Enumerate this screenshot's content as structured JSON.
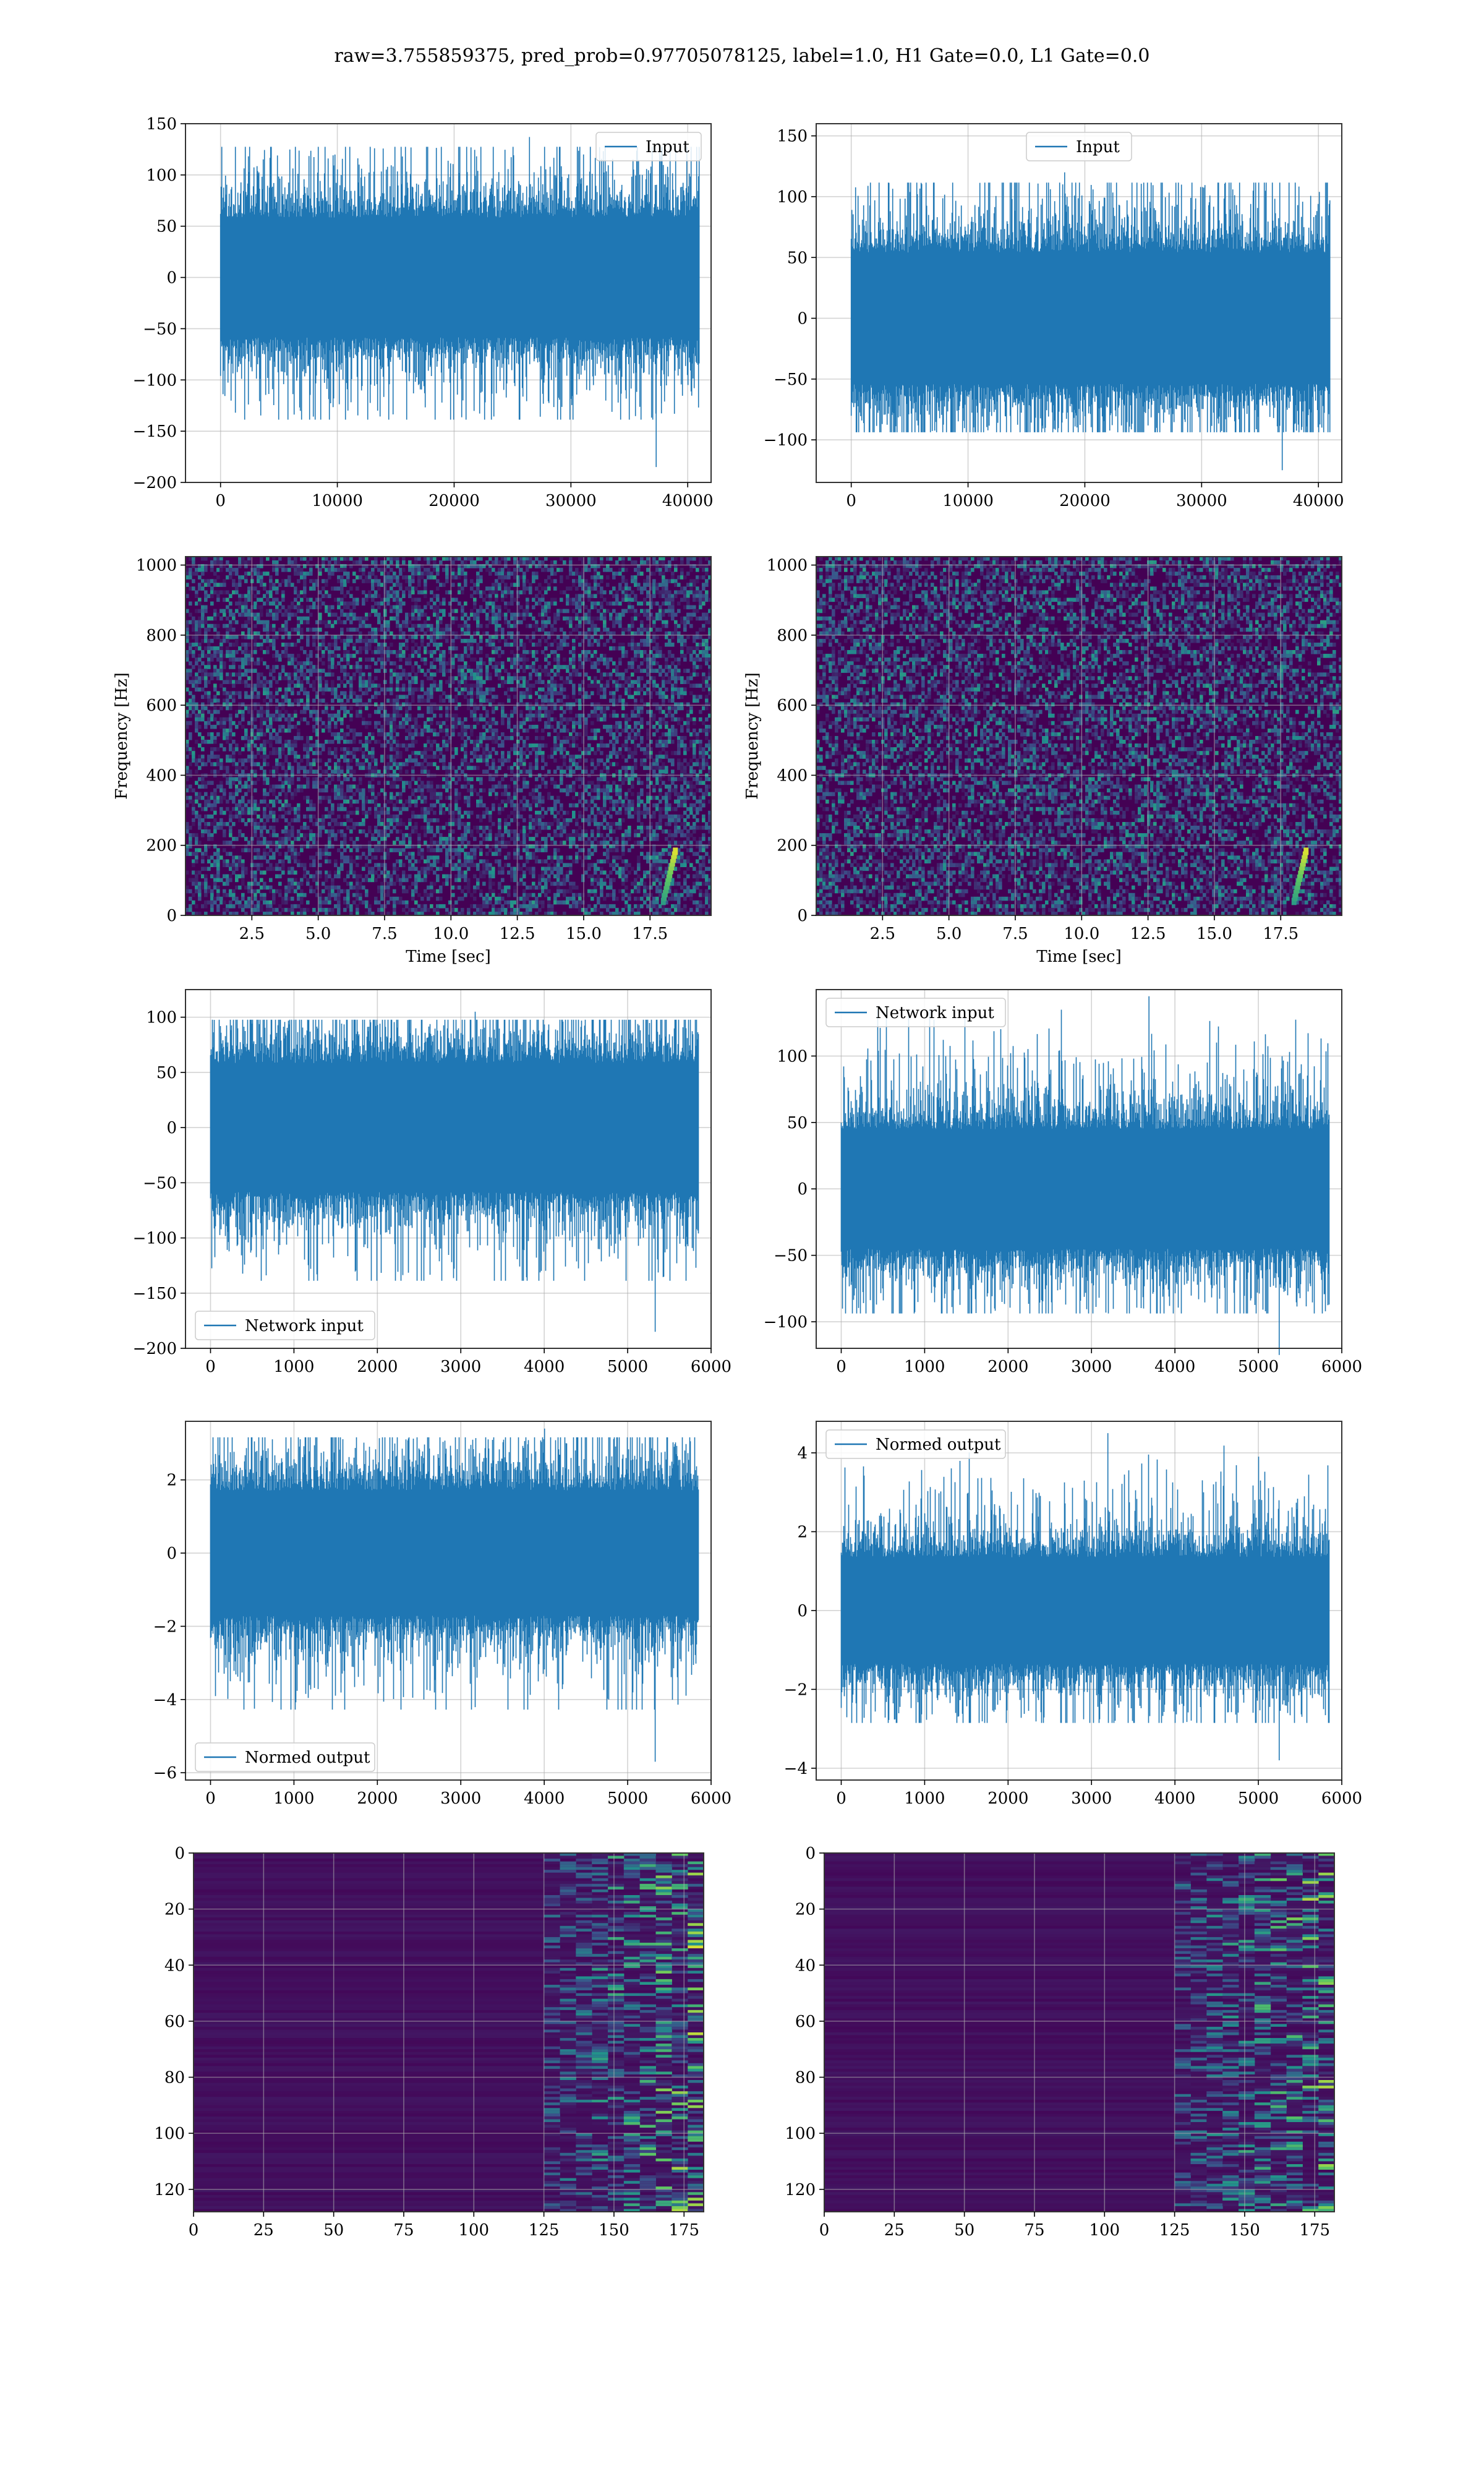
{
  "figure": {
    "suptitle": "raw=3.755859375, pred_prob=0.97705078125, label=1.0, H1 Gate=0.0, L1 Gate=0.0"
  },
  "colors": {
    "line": "#1f77b4",
    "grid": "#b0b0b0",
    "viridis_low": "#440154",
    "viridis_mid": "#21918c",
    "viridis_high": "#fde725"
  },
  "chart_data": [
    {
      "id": "input-h1",
      "type": "line",
      "legend": "Input",
      "legend_loc": "upper right",
      "xlim": [
        -3000,
        42000
      ],
      "ylim": [
        -200,
        150
      ],
      "xticks": [
        0,
        10000,
        20000,
        30000,
        40000
      ],
      "yticks": [
        -200,
        -150,
        -100,
        -50,
        0,
        50,
        100,
        150
      ],
      "n_points": 40960,
      "band": 65,
      "peak_high": 137,
      "peak_low": -185,
      "outlier_x": 37300,
      "xlabel": "",
      "ylabel": "",
      "grid": true
    },
    {
      "id": "input-l1",
      "type": "line",
      "legend": "Input",
      "legend_loc": "upper center",
      "xlim": [
        -3000,
        42000
      ],
      "ylim": [
        -135,
        160
      ],
      "xticks": [
        0,
        10000,
        20000,
        30000,
        40000
      ],
      "yticks": [
        -100,
        -50,
        0,
        50,
        100,
        150
      ],
      "n_points": 40960,
      "band": 60,
      "peak_high": 120,
      "peak_low": -125,
      "outlier_x": 36900,
      "xlabel": "",
      "ylabel": "",
      "grid": true
    },
    {
      "id": "spec-h1",
      "type": "heatmap",
      "xlabel": "Time [sec]",
      "ylabel": "Frequency [Hz]",
      "xlim": [
        0,
        19.8
      ],
      "ylim": [
        0,
        1024
      ],
      "xticks": [
        2.5,
        5.0,
        7.5,
        10.0,
        12.5,
        15.0,
        17.5
      ],
      "yticks": [
        0,
        200,
        400,
        600,
        800,
        1000
      ],
      "grid": true
    },
    {
      "id": "spec-l1",
      "type": "heatmap",
      "xlabel": "Time [sec]",
      "ylabel": "Frequency [Hz]",
      "xlim": [
        0,
        19.8
      ],
      "ylim": [
        0,
        1024
      ],
      "xticks": [
        2.5,
        5.0,
        7.5,
        10.0,
        12.5,
        15.0,
        17.5
      ],
      "yticks": [
        0,
        200,
        400,
        600,
        800,
        1000
      ],
      "grid": true
    },
    {
      "id": "net-h1",
      "type": "line",
      "legend": "Network input",
      "legend_loc": "lower left",
      "xlim": [
        -300,
        6000
      ],
      "ylim": [
        -200,
        125
      ],
      "xticks": [
        0,
        1000,
        2000,
        3000,
        4000,
        5000,
        6000
      ],
      "yticks": [
        -200,
        -150,
        -100,
        -50,
        0,
        50,
        100
      ],
      "n_points": 5850,
      "band": 65,
      "peak_high": 105,
      "peak_low": -185,
      "outlier_x": 5330,
      "xlabel": "",
      "ylabel": "",
      "grid": true
    },
    {
      "id": "net-l1",
      "type": "line",
      "legend": "Network input",
      "legend_loc": "upper left",
      "xlim": [
        -300,
        6000
      ],
      "ylim": [
        -120,
        150
      ],
      "xticks": [
        0,
        1000,
        2000,
        3000,
        4000,
        5000,
        6000
      ],
      "yticks": [
        -100,
        -50,
        0,
        50,
        100
      ],
      "n_points": 5850,
      "band": 50,
      "peak_high": 145,
      "peak_low": -125,
      "outlier_x": 5250,
      "xlabel": "",
      "ylabel": "",
      "grid": true
    },
    {
      "id": "norm-h1",
      "type": "line",
      "legend": "Normed output",
      "legend_loc": "lower left",
      "xlim": [
        -300,
        6000
      ],
      "ylim": [
        -6.2,
        3.6
      ],
      "xticks": [
        0,
        1000,
        2000,
        3000,
        4000,
        5000,
        6000
      ],
      "yticks": [
        -6,
        -4,
        -2,
        0,
        2
      ],
      "n_points": 5850,
      "band": 1.9,
      "peak_high": 3.4,
      "peak_low": -5.7,
      "outlier_x": 5330,
      "xlabel": "",
      "ylabel": "",
      "grid": true
    },
    {
      "id": "norm-l1",
      "type": "line",
      "legend": "Normed output",
      "legend_loc": "upper left",
      "xlim": [
        -300,
        6000
      ],
      "ylim": [
        -4.3,
        4.8
      ],
      "xticks": [
        0,
        1000,
        2000,
        3000,
        4000,
        5000,
        6000
      ],
      "yticks": [
        -4,
        -2,
        0,
        2,
        4
      ],
      "n_points": 5850,
      "band": 1.5,
      "peak_high": 4.5,
      "peak_low": -3.8,
      "outlier_x": 5250,
      "xlabel": "",
      "ylabel": "",
      "grid": true
    },
    {
      "id": "feat-h1",
      "type": "heatmap",
      "xlim": [
        0,
        182
      ],
      "ylim": [
        128,
        0
      ],
      "xticks": [
        0,
        25,
        50,
        75,
        100,
        125,
        150,
        175
      ],
      "yticks": [
        0,
        20,
        40,
        60,
        80,
        100,
        120
      ],
      "xlabel": "",
      "ylabel": "",
      "grid": true
    },
    {
      "id": "feat-l1",
      "type": "heatmap",
      "xlim": [
        0,
        182
      ],
      "ylim": [
        128,
        0
      ],
      "xticks": [
        0,
        25,
        50,
        75,
        100,
        125,
        150,
        175
      ],
      "yticks": [
        0,
        20,
        40,
        60,
        80,
        100,
        120
      ],
      "xlabel": "",
      "ylabel": "",
      "grid": true
    }
  ]
}
